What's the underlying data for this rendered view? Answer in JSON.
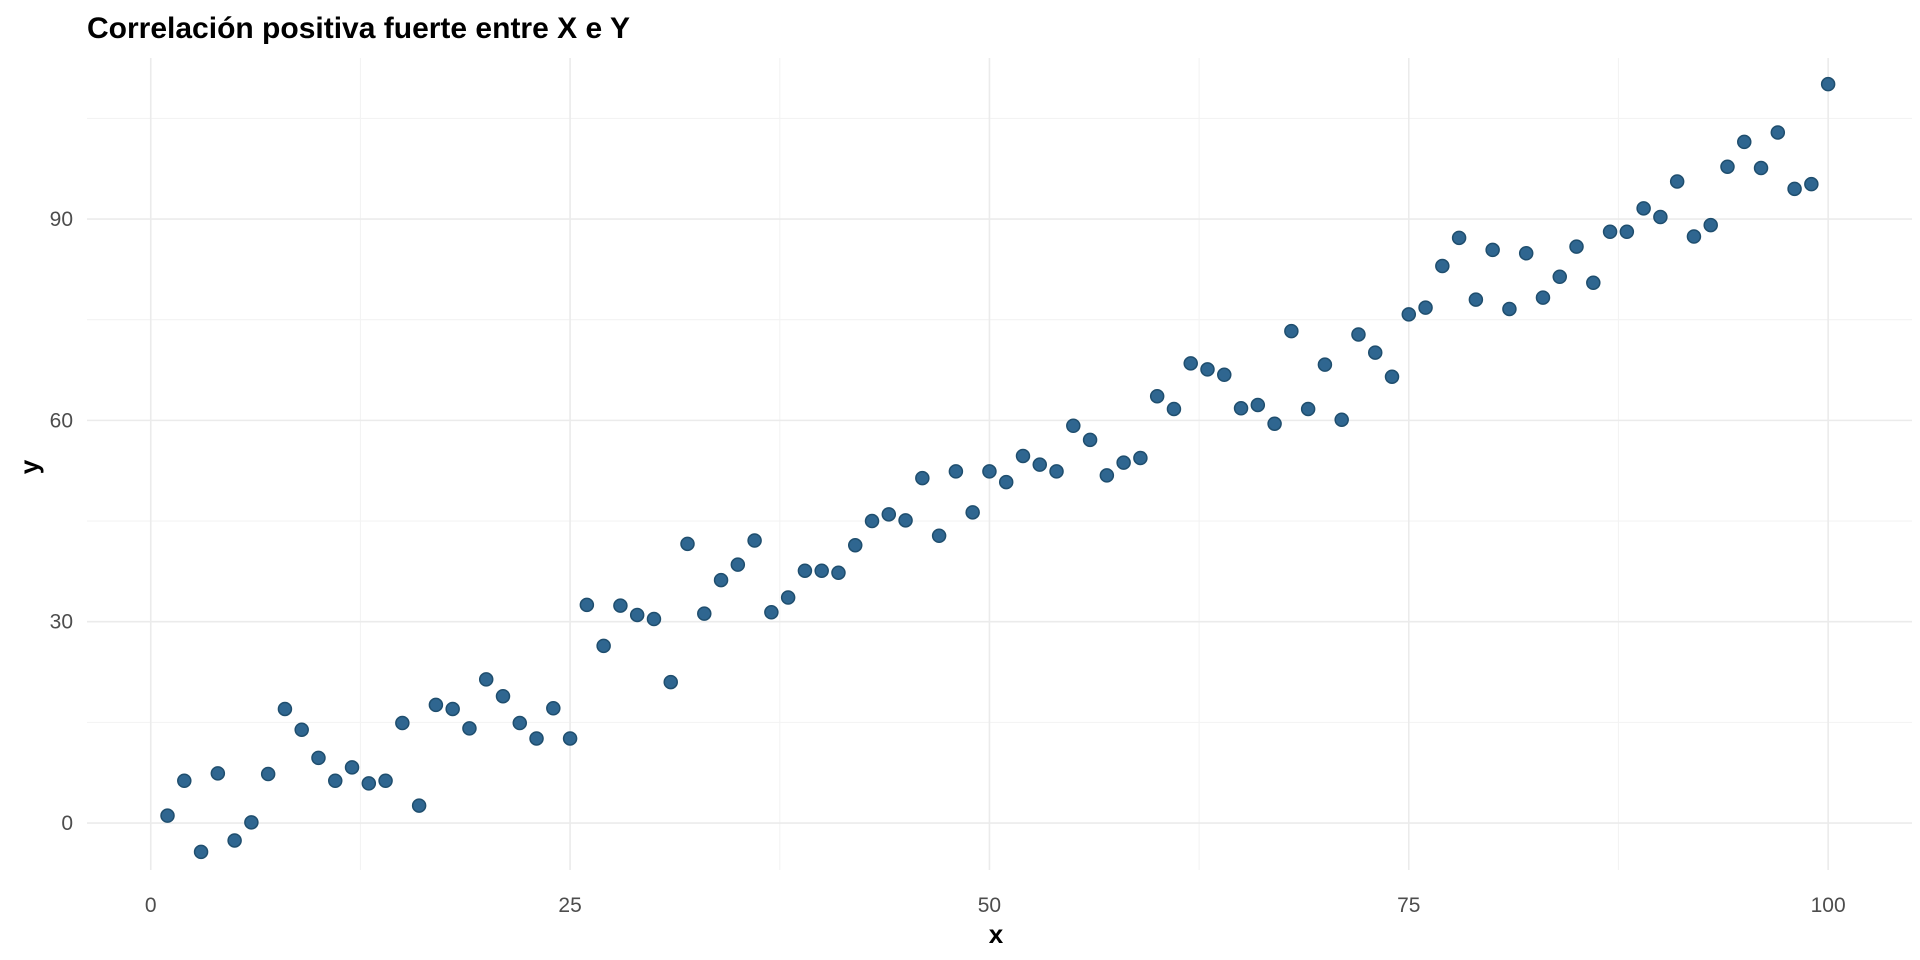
{
  "chart_data": {
    "type": "scatter",
    "title": "Correlación positiva fuerte entre X e Y",
    "xlabel": "x",
    "ylabel": "y",
    "xlim": [
      -3.8,
      105.0
    ],
    "ylim": [
      -7.0,
      114.0
    ],
    "x_ticks": [
      0,
      25,
      50,
      75,
      100
    ],
    "y_ticks": [
      0,
      30,
      60,
      90
    ],
    "x_tick_labels": [
      "0",
      "25",
      "50",
      "75",
      "100"
    ],
    "y_tick_labels": [
      "0",
      "30",
      "60",
      "90"
    ],
    "grid": true,
    "point_color": "#2f6690",
    "x": [
      1,
      2,
      3,
      4,
      5,
      6,
      7,
      8,
      9,
      10,
      11,
      12,
      13,
      14,
      15,
      16,
      17,
      18,
      19,
      20,
      21,
      22,
      23,
      24,
      25,
      26,
      27,
      28,
      29,
      30,
      31,
      32,
      33,
      34,
      35,
      36,
      37,
      38,
      39,
      40,
      41,
      42,
      43,
      44,
      45,
      46,
      47,
      48,
      49,
      50,
      51,
      52,
      53,
      54,
      55,
      56,
      57,
      58,
      59,
      60,
      61,
      62,
      63,
      64,
      65,
      66,
      67,
      68,
      69,
      70,
      71,
      72,
      73,
      74,
      75,
      76,
      77,
      78,
      79,
      80,
      81,
      82,
      83,
      84,
      85,
      86,
      87,
      88,
      89,
      90,
      91,
      92,
      93,
      94,
      95,
      96,
      97,
      98,
      99,
      100
    ],
    "y": [
      1.1,
      6.3,
      -4.3,
      7.4,
      -2.6,
      0.1,
      7.3,
      17.0,
      13.9,
      9.7,
      6.3,
      8.3,
      5.9,
      6.3,
      14.9,
      2.6,
      17.6,
      17.0,
      14.1,
      21.4,
      18.9,
      14.9,
      12.6,
      17.1,
      12.6,
      32.5,
      26.4,
      32.4,
      31.0,
      30.4,
      21.0,
      41.6,
      31.2,
      36.2,
      38.5,
      42.1,
      31.4,
      33.6,
      37.6,
      37.6,
      37.3,
      41.4,
      45.0,
      46.0,
      45.1,
      51.4,
      42.8,
      52.4,
      46.3,
      52.4,
      50.8,
      54.7,
      53.4,
      52.4,
      59.2,
      57.1,
      51.8,
      53.7,
      54.4,
      63.6,
      61.7,
      68.5,
      67.6,
      66.8,
      61.8,
      62.3,
      59.5,
      73.3,
      61.7,
      68.3,
      60.1,
      72.8,
      70.1,
      66.5,
      75.8,
      76.8,
      83.0,
      87.2,
      78.0,
      85.4,
      76.6,
      84.9,
      78.3,
      81.4,
      85.9,
      80.5,
      88.1,
      88.1,
      91.6,
      90.3,
      95.6,
      87.4,
      89.1,
      97.8,
      101.5,
      97.6,
      102.9,
      94.5,
      95.2,
      110.1
    ]
  }
}
